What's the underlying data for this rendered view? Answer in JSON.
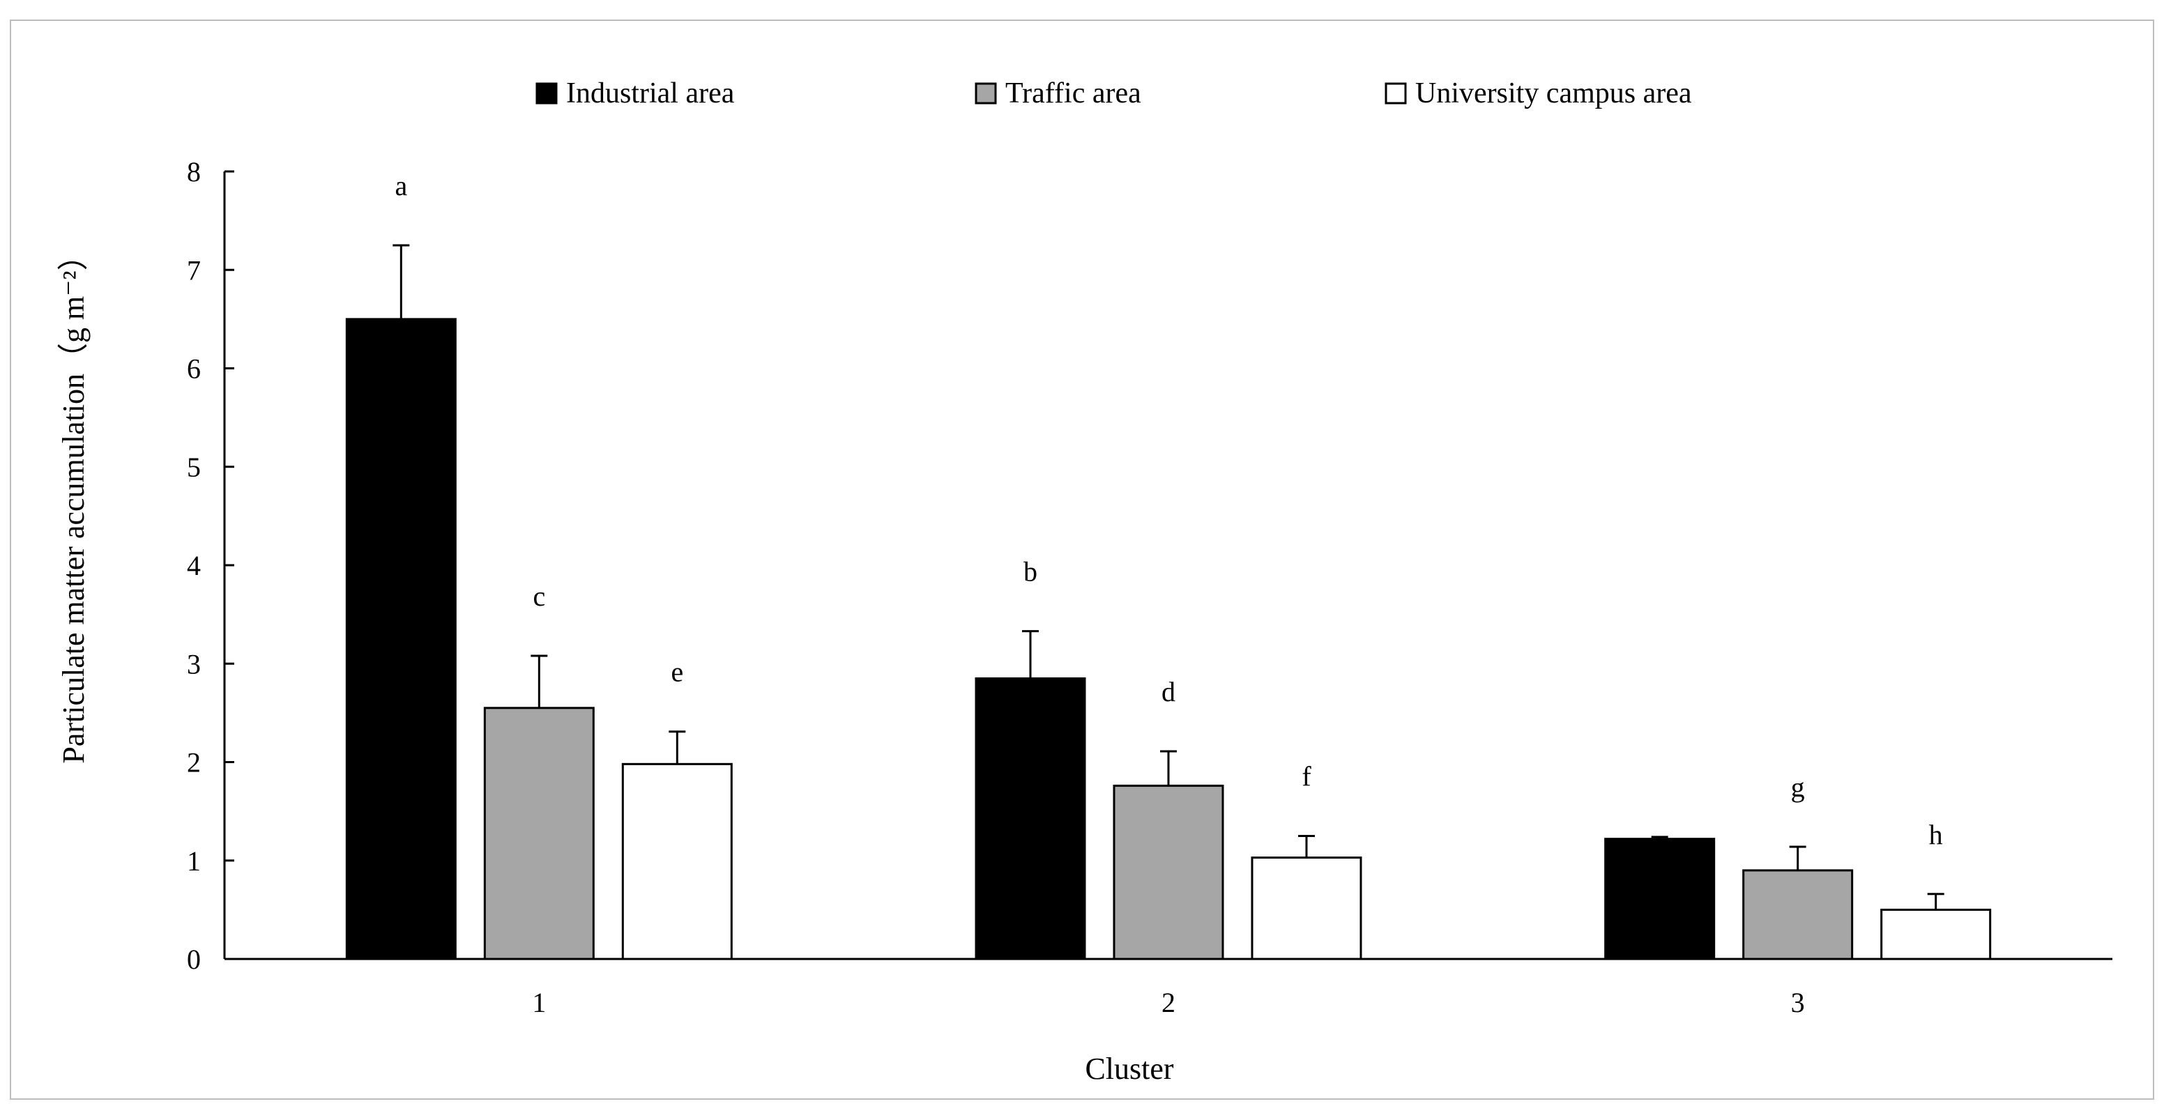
{
  "chart_data": {
    "type": "bar",
    "categories": [
      "1",
      "2",
      "3"
    ],
    "series": [
      {
        "name": "Industrial area",
        "color": "#000000",
        "values": [
          6.5,
          2.85,
          1.22
        ],
        "errors": [
          0.75,
          0.48,
          0.02
        ],
        "labels": [
          "a",
          "b",
          ""
        ]
      },
      {
        "name": "Traffic area",
        "color": "#a6a6a6",
        "values": [
          2.55,
          1.76,
          0.9
        ],
        "errors": [
          0.53,
          0.35,
          0.24
        ],
        "labels": [
          "c",
          "d",
          "g"
        ]
      },
      {
        "name": "University campus area",
        "color": "#ffffff",
        "values": [
          1.98,
          1.03,
          0.5
        ],
        "errors": [
          0.33,
          0.22,
          0.16
        ],
        "labels": [
          "e",
          "f",
          "h"
        ]
      }
    ],
    "xlabel": "Cluster",
    "ylabel": "Particulate matter accumulation（g m⁻²）",
    "ylim": [
      0,
      8
    ],
    "yticks": [
      "0",
      "1",
      "2",
      "3",
      "4",
      "5",
      "6",
      "7",
      "8"
    ],
    "grid": false,
    "legend_position": "top"
  }
}
